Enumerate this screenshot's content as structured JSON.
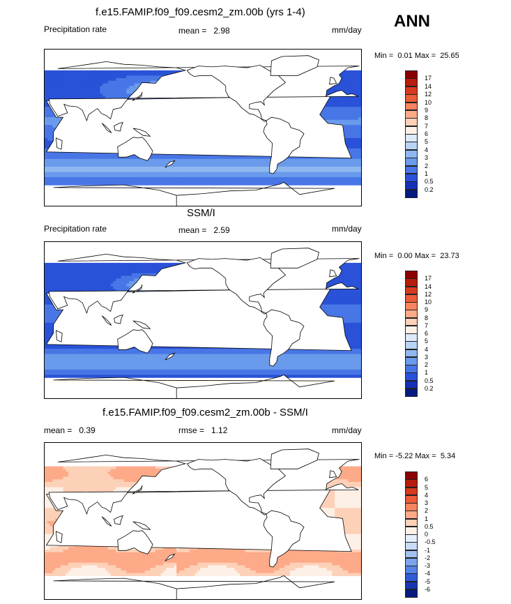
{
  "season_label": "ANN",
  "chart_data": [
    {
      "type": "heatmap",
      "title": "f.e15.FAMIP.f09_f09.cesm2_zm.00b (yrs 1-4)",
      "left_label": "Precipitation rate",
      "stat_label": "mean =",
      "stat_value": "2.98",
      "units": "mm/day",
      "min_label": "Min =",
      "min_value": "0.01",
      "max_label": "Max =",
      "max_value": "25.65",
      "colorbar_levels": [
        "17",
        "14",
        "12",
        "10",
        "9",
        "8",
        "7",
        "6",
        "5",
        "4",
        "3",
        "2",
        "1",
        "0.5",
        "0.2"
      ],
      "colorbar_colors": [
        "#8b0000",
        "#b71c0c",
        "#d73a1e",
        "#ec5c38",
        "#f7845e",
        "#fdaa88",
        "#fdd0b8",
        "#fdf0e6",
        "#dceaf9",
        "#b8d4f5",
        "#8fb8f0",
        "#6a9aeb",
        "#4876e6",
        "#2a52d8",
        "#1530b8",
        "#061a7f"
      ],
      "field": "precip_model"
    },
    {
      "type": "heatmap",
      "title": "SSM/I",
      "left_label": "Precipitation rate",
      "stat_label": "mean =",
      "stat_value": "2.59",
      "units": "mm/day",
      "min_label": "Min =",
      "min_value": "0.00",
      "max_label": "Max =",
      "max_value": "23.73",
      "colorbar_levels": [
        "17",
        "14",
        "12",
        "10",
        "9",
        "8",
        "7",
        "6",
        "5",
        "4",
        "3",
        "2",
        "1",
        "0.5",
        "0.2"
      ],
      "colorbar_colors": [
        "#8b0000",
        "#b71c0c",
        "#d73a1e",
        "#ec5c38",
        "#f7845e",
        "#fdaa88",
        "#fdd0b8",
        "#fdf0e6",
        "#dceaf9",
        "#b8d4f5",
        "#8fb8f0",
        "#6a9aeb",
        "#4876e6",
        "#2a52d8",
        "#1530b8",
        "#061a7f"
      ],
      "field": "precip_obs"
    },
    {
      "type": "heatmap",
      "title": "f.e15.FAMIP.f09_f09.cesm2_zm.00b - SSM/I",
      "left_label": "mean =",
      "left_value": "0.39",
      "stat_label": "rmse =",
      "stat_value": "1.12",
      "units": "mm/day",
      "min_label": "Min =",
      "min_value": "-5.22",
      "max_label": "Max =",
      "max_value": "5.34",
      "colorbar_levels": [
        "6",
        "5",
        "4",
        "3",
        "2",
        "1",
        "0.5",
        "0",
        "-0.5",
        "-1",
        "-2",
        "-3",
        "-4",
        "-5",
        "-6"
      ],
      "colorbar_colors": [
        "#8b0000",
        "#b71c0c",
        "#d73a1e",
        "#ec5c38",
        "#f7845e",
        "#fdaa88",
        "#fdd0b8",
        "#fdf0e6",
        "#e6eefb",
        "#c8dcf6",
        "#a3c2f1",
        "#7ba4ec",
        "#5482e6",
        "#2f5cd6",
        "#1836b4",
        "#061a7f"
      ],
      "field": "precip_diff"
    }
  ]
}
